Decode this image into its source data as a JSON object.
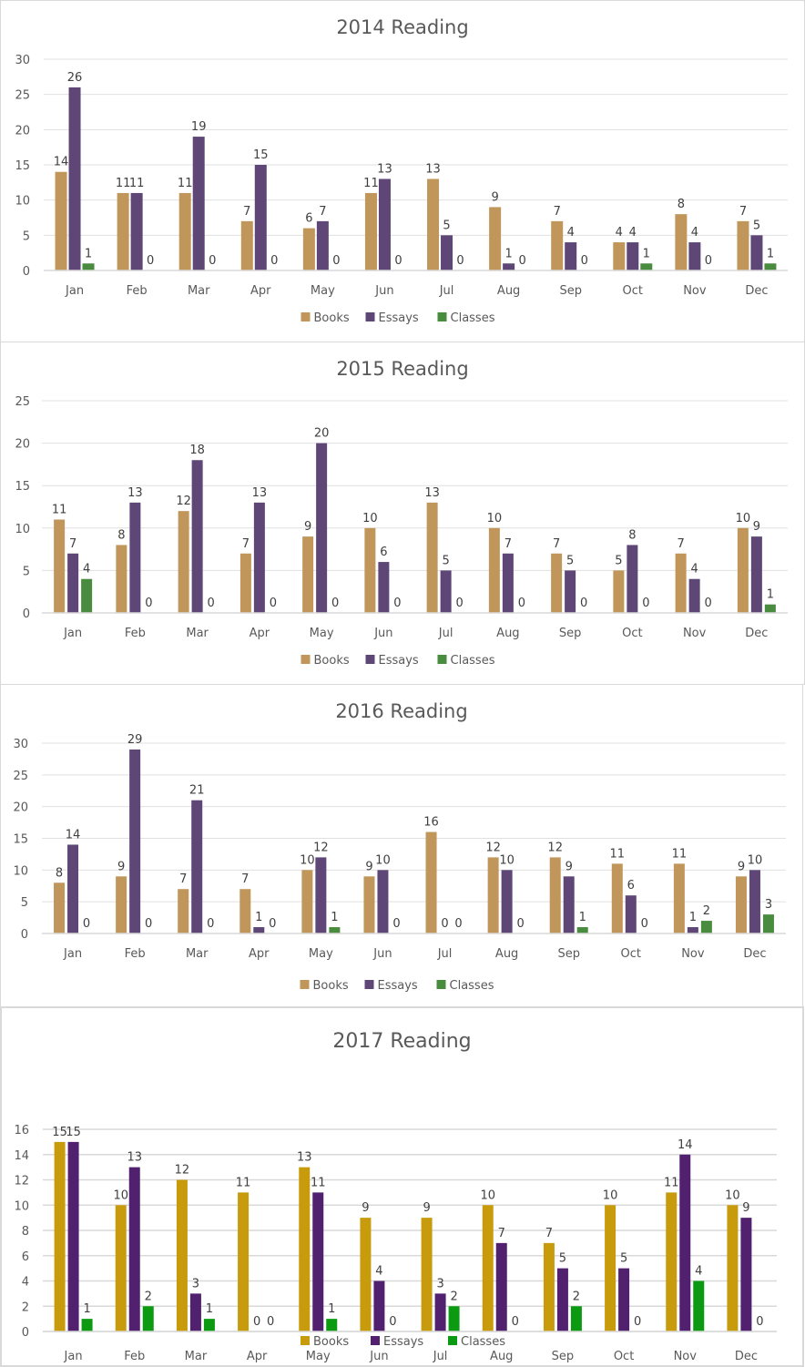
{
  "chart_data": [
    {
      "type": "bar",
      "title": "2014 Reading",
      "xlabel": "",
      "ylabel": "",
      "ylim": [
        0,
        30
      ],
      "yticks": [
        0,
        5,
        10,
        15,
        20,
        25,
        30
      ],
      "grid": true,
      "legend": "bottom",
      "categories": [
        "Jan",
        "Feb",
        "Mar",
        "Apr",
        "May",
        "Jun",
        "Jul",
        "Aug",
        "Sep",
        "Oct",
        "Nov",
        "Dec"
      ],
      "series": [
        {
          "name": "Books",
          "color": "#C0965A",
          "values": [
            14,
            11,
            11,
            7,
            6,
            11,
            13,
            9,
            7,
            4,
            8,
            7
          ]
        },
        {
          "name": "Essays",
          "color": "#5E4677",
          "values": [
            26,
            11,
            19,
            15,
            7,
            13,
            5,
            1,
            4,
            4,
            4,
            5
          ]
        },
        {
          "name": "Classes",
          "color": "#4A8C3F",
          "values": [
            1,
            0,
            0,
            0,
            0,
            0,
            0,
            0,
            0,
            1,
            0,
            1
          ]
        }
      ]
    },
    {
      "type": "bar",
      "title": "2015 Reading",
      "xlabel": "",
      "ylabel": "",
      "ylim": [
        0,
        25
      ],
      "yticks": [
        0,
        5,
        10,
        15,
        20,
        25
      ],
      "grid": true,
      "legend": "bottom",
      "categories": [
        "Jan",
        "Feb",
        "Mar",
        "Apr",
        "May",
        "Jun",
        "Jul",
        "Aug",
        "Sep",
        "Oct",
        "Nov",
        "Dec"
      ],
      "series": [
        {
          "name": "Books",
          "color": "#C0965A",
          "values": [
            11,
            8,
            12,
            7,
            9,
            10,
            13,
            10,
            7,
            5,
            7,
            10
          ]
        },
        {
          "name": "Essays",
          "color": "#5E4677",
          "values": [
            7,
            13,
            18,
            13,
            20,
            6,
            5,
            7,
            5,
            8,
            4,
            9
          ]
        },
        {
          "name": "Classes",
          "color": "#4A8C3F",
          "values": [
            4,
            0,
            0,
            0,
            0,
            0,
            0,
            0,
            0,
            0,
            0,
            1
          ]
        }
      ]
    },
    {
      "type": "bar",
      "title": "2016 Reading",
      "xlabel": "",
      "ylabel": "",
      "ylim": [
        0,
        30
      ],
      "yticks": [
        0,
        5,
        10,
        15,
        20,
        25,
        30
      ],
      "grid": true,
      "legend": "bottom",
      "categories": [
        "Jan",
        "Feb",
        "Mar",
        "Apr",
        "May",
        "Jun",
        "Jul",
        "Aug",
        "Sep",
        "Oct",
        "Nov",
        "Dec"
      ],
      "series": [
        {
          "name": "Books",
          "color": "#C0965A",
          "values": [
            8,
            9,
            7,
            7,
            10,
            9,
            16,
            12,
            12,
            11,
            11,
            9
          ]
        },
        {
          "name": "Essays",
          "color": "#5E4677",
          "values": [
            14,
            29,
            21,
            1,
            12,
            10,
            0,
            10,
            9,
            6,
            1,
            10
          ]
        },
        {
          "name": "Classes",
          "color": "#4A8C3F",
          "values": [
            0,
            0,
            0,
            0,
            1,
            0,
            0,
            0,
            1,
            0,
            2,
            3
          ]
        }
      ]
    },
    {
      "type": "bar",
      "title": "2017 Reading",
      "xlabel": "",
      "ylabel": "",
      "ylim": [
        0,
        16
      ],
      "yticks": [
        0,
        2,
        4,
        6,
        8,
        10,
        12,
        14,
        16
      ],
      "grid": true,
      "legend": "bottom",
      "categories": [
        "Jan",
        "Feb",
        "Mar",
        "Apr",
        "May",
        "Jun",
        "Jul",
        "Aug",
        "Sep",
        "Oct",
        "Nov",
        "Dec"
      ],
      "series": [
        {
          "name": "Books",
          "color": "#C89B0C",
          "values": [
            15,
            10,
            12,
            11,
            13,
            9,
            9,
            10,
            7,
            10,
            11,
            10
          ]
        },
        {
          "name": "Essays",
          "color": "#512170",
          "values": [
            15,
            13,
            3,
            0,
            11,
            4,
            3,
            7,
            5,
            5,
            14,
            9
          ]
        },
        {
          "name": "Classes",
          "color": "#0B9A12",
          "values": [
            1,
            2,
            1,
            0,
            1,
            0,
            2,
            0,
            2,
            0,
            4,
            0
          ]
        }
      ]
    }
  ]
}
